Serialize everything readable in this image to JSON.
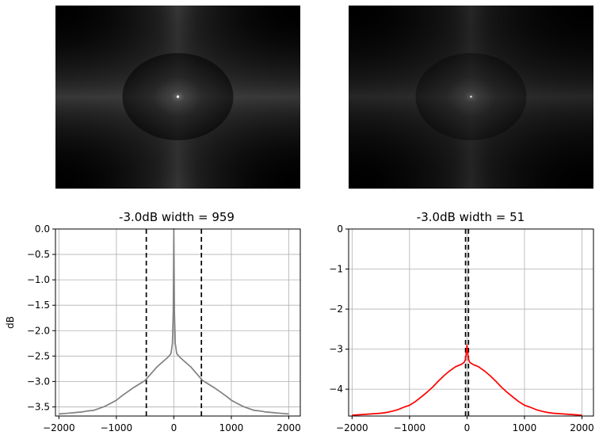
{
  "chart_data": [
    {
      "type": "heatmap",
      "title": "",
      "description_visible": "2D spectrum magnitude image (grayscale)",
      "brightness": 1.0
    },
    {
      "type": "heatmap",
      "title": "",
      "description_visible": "2D spectrum magnitude image (grayscale)",
      "brightness": 0.72
    },
    {
      "type": "line",
      "title": "-3.0dB width = 959",
      "xlabel": "",
      "ylabel": "dB",
      "xlim": [
        -2060,
        2200
      ],
      "ylim": [
        -3.68,
        0.0
      ],
      "xticks": [
        -2000,
        -1000,
        0,
        1000,
        2000
      ],
      "xtick_labels": [
        "−2000",
        "−1000",
        "0",
        "1000",
        "2000"
      ],
      "yticks": [
        0.0,
        -0.5,
        -1.0,
        -1.5,
        -2.0,
        -2.5,
        -3.0,
        -3.5
      ],
      "ytick_labels": [
        "0.0",
        "−0.5",
        "−1.0",
        "−1.5",
        "−2.0",
        "−2.5",
        "−3.0",
        "−3.5"
      ],
      "grid": true,
      "color": "#808080",
      "vlines": [
        -479.5,
        479.5
      ],
      "series": [
        {
          "x": [
            -2000,
            -1900,
            -1800,
            -1700,
            -1600,
            -1500,
            -1400,
            -1300,
            -1200,
            -1100,
            -1000,
            -900,
            -800,
            -700,
            -600,
            -500,
            -400,
            -300,
            -200,
            -100,
            -50,
            -25,
            -10,
            0,
            10,
            25,
            50,
            100,
            200,
            300,
            400,
            500,
            600,
            700,
            800,
            900,
            1000,
            1100,
            1200,
            1300,
            1400,
            1500,
            1600,
            1700,
            1800,
            1900,
            2000
          ],
          "values": [
            -3.64,
            -3.63,
            -3.62,
            -3.61,
            -3.6,
            -3.58,
            -3.57,
            -3.53,
            -3.49,
            -3.43,
            -3.37,
            -3.28,
            -3.2,
            -3.12,
            -3.05,
            -2.98,
            -2.85,
            -2.72,
            -2.62,
            -2.52,
            -2.45,
            -2.25,
            -1.6,
            0.0,
            -1.6,
            -2.25,
            -2.45,
            -2.52,
            -2.62,
            -2.72,
            -2.85,
            -2.98,
            -3.05,
            -3.12,
            -3.2,
            -3.28,
            -3.37,
            -3.43,
            -3.49,
            -3.53,
            -3.57,
            -3.58,
            -3.6,
            -3.61,
            -3.62,
            -3.63,
            -3.64
          ]
        }
      ]
    },
    {
      "type": "line",
      "title": "-3.0dB width = 51",
      "xlabel": "",
      "ylabel": "",
      "xlim": [
        -2060,
        2200
      ],
      "ylim": [
        -4.67,
        0.0
      ],
      "xticks": [
        -2000,
        -1000,
        0,
        1000,
        2000
      ],
      "xtick_labels": [
        "−2000",
        "−1000",
        "0",
        "1000",
        "2000"
      ],
      "yticks": [
        0,
        -1,
        -2,
        -3,
        -4
      ],
      "ytick_labels": [
        "0",
        "−1",
        "−2",
        "−3",
        "−4"
      ],
      "grid": true,
      "color": "#ff0000",
      "vlines": [
        -25.5,
        25.5
      ],
      "series": [
        {
          "x": [
            -2000,
            -1900,
            -1800,
            -1700,
            -1600,
            -1500,
            -1400,
            -1300,
            -1200,
            -1100,
            -1000,
            -900,
            -800,
            -700,
            -600,
            -500,
            -400,
            -300,
            -200,
            -100,
            -50,
            -25,
            -10,
            0,
            10,
            25,
            50,
            100,
            200,
            300,
            400,
            500,
            600,
            700,
            800,
            900,
            1000,
            1100,
            1200,
            1300,
            1400,
            1500,
            1600,
            1700,
            1800,
            1900,
            2000
          ],
          "values": [
            -4.65,
            -4.64,
            -4.63,
            -4.62,
            -4.61,
            -4.6,
            -4.58,
            -4.55,
            -4.51,
            -4.45,
            -4.4,
            -4.31,
            -4.2,
            -4.08,
            -3.95,
            -3.8,
            -3.66,
            -3.54,
            -3.44,
            -3.38,
            -3.33,
            -3.25,
            -3.05,
            -2.9,
            -3.05,
            -3.25,
            -3.33,
            -3.38,
            -3.44,
            -3.54,
            -3.66,
            -3.8,
            -3.95,
            -4.08,
            -4.2,
            -4.31,
            -4.4,
            -4.45,
            -4.51,
            -4.55,
            -4.58,
            -4.6,
            -4.61,
            -4.62,
            -4.63,
            -4.64,
            -4.65
          ]
        }
      ]
    }
  ]
}
